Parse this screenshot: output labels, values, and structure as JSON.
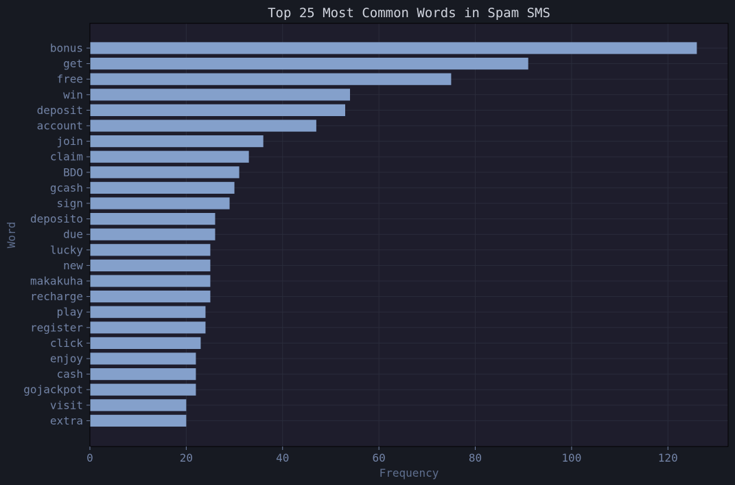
{
  "chart_data": {
    "type": "bar",
    "orientation": "horizontal",
    "title": "Top 25 Most Common Words in Spam SMS",
    "xlabel": "Frequency",
    "ylabel": "Word",
    "xlim": [
      0,
      132.5
    ],
    "xticks": [
      0,
      20,
      40,
      60,
      80,
      100,
      120
    ],
    "grid": true,
    "categories": [
      "bonus",
      "get",
      "free",
      "win",
      "deposit",
      "account",
      "join",
      "claim",
      "BDO",
      "gcash",
      "sign",
      "deposito",
      "due",
      "lucky",
      "new",
      "makakuha",
      "recharge",
      "play",
      "register",
      "click",
      "enjoy",
      "cash",
      "gojackpot",
      "visit",
      "extra"
    ],
    "values": [
      126,
      91,
      75,
      54,
      53,
      47,
      36,
      33,
      31,
      30,
      29,
      26,
      26,
      25,
      25,
      25,
      25,
      24,
      24,
      23,
      22,
      22,
      22,
      20,
      20
    ]
  },
  "colors": {
    "page_background": "#171a22",
    "plot_background": "#1e1d2c",
    "bar": "#84a0cb",
    "grid": "#2a2c3b",
    "axis": "#000000",
    "title": "#d0d4de",
    "tick_text": "#7283a6",
    "axis_label_text": "#5f6f8f"
  }
}
